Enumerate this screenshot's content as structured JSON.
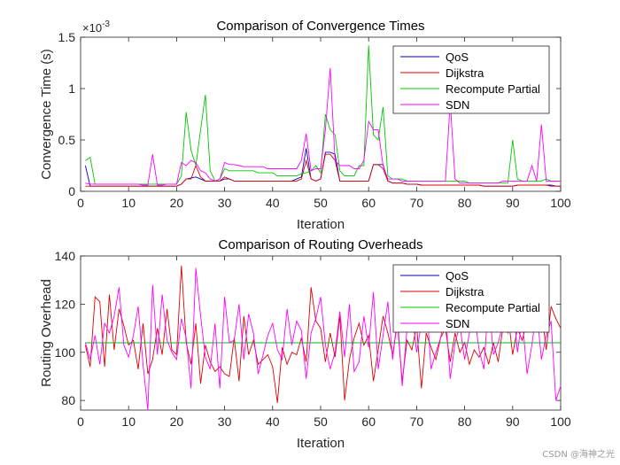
{
  "chart_data": [
    {
      "type": "line",
      "title": "Comparison of Convergence Times",
      "xlabel": "Iteration",
      "ylabel": "Convergence Time (s)",
      "exponent_label": "×10",
      "exponent_power": "-3",
      "xlim": [
        0,
        100
      ],
      "ylim": [
        0,
        1.5
      ],
      "xticks": [
        "0",
        "10",
        "20",
        "30",
        "40",
        "50",
        "60",
        "70",
        "80",
        "90",
        "100"
      ],
      "yticks": [
        "0",
        "0.5",
        "1",
        "1.5"
      ],
      "ytick_values": [
        0,
        0.5,
        1,
        1.5
      ],
      "grid": false,
      "legend_position": "top-right",
      "series": [
        {
          "name": "QoS",
          "color": "#0000c8",
          "values": [
            0.25,
            0.05,
            0.05,
            0.05,
            0.05,
            0.05,
            0.05,
            0.05,
            0.05,
            0.05,
            0.05,
            0.05,
            0.05,
            0.05,
            0.05,
            0.05,
            0.05,
            0.05,
            0.05,
            0.05,
            0.07,
            0.12,
            0.13,
            0.14,
            0.12,
            0.1,
            0.1,
            0.1,
            0.1,
            0.12,
            0.12,
            0.1,
            0.1,
            0.1,
            0.1,
            0.1,
            0.1,
            0.1,
            0.1,
            0.1,
            0.1,
            0.1,
            0.1,
            0.1,
            0.12,
            0.14,
            0.42,
            0.12,
            0.1,
            0.12,
            0.38,
            0.38,
            0.36,
            0.1,
            0.1,
            0.1,
            0.1,
            0.1,
            0.1,
            0.1,
            0.26,
            0.26,
            0.26,
            0.1,
            0.08,
            0.08,
            0.08,
            0.07,
            0.07,
            0.07,
            0.06,
            0.06,
            0.06,
            0.06,
            0.06,
            0.06,
            0.06,
            0.06,
            0.06,
            0.06,
            0.06,
            0.06,
            0.06,
            0.05,
            0.05,
            0.05,
            0.05,
            0.05,
            0.05,
            0.05,
            0.06,
            0.06,
            0.06,
            0.06,
            0.06,
            0.06,
            0.06,
            0.06,
            0.05,
            0.05
          ]
        },
        {
          "name": "Dijkstra",
          "color": "#e00000",
          "values": [
            0.05,
            0.05,
            0.05,
            0.05,
            0.05,
            0.05,
            0.05,
            0.05,
            0.05,
            0.05,
            0.05,
            0.05,
            0.05,
            0.05,
            0.05,
            0.05,
            0.05,
            0.05,
            0.05,
            0.05,
            0.07,
            0.12,
            0.12,
            0.25,
            0.14,
            0.1,
            0.1,
            0.1,
            0.1,
            0.14,
            0.12,
            0.1,
            0.1,
            0.1,
            0.1,
            0.1,
            0.1,
            0.1,
            0.1,
            0.1,
            0.1,
            0.1,
            0.1,
            0.1,
            0.1,
            0.12,
            0.3,
            0.12,
            0.1,
            0.12,
            0.36,
            0.36,
            0.3,
            0.1,
            0.1,
            0.1,
            0.1,
            0.1,
            0.1,
            0.1,
            0.26,
            0.26,
            0.22,
            0.1,
            0.08,
            0.08,
            0.08,
            0.07,
            0.07,
            0.07,
            0.06,
            0.06,
            0.06,
            0.06,
            0.06,
            0.06,
            0.06,
            0.06,
            0.06,
            0.06,
            0.06,
            0.06,
            0.06,
            0.05,
            0.05,
            0.05,
            0.05,
            0.05,
            0.05,
            0.05,
            0.06,
            0.06,
            0.06,
            0.06,
            0.06,
            0.06,
            0.06,
            0.05,
            0.05,
            0.05
          ]
        },
        {
          "name": "Recompute Partial",
          "color": "#00c800",
          "values": [
            0.3,
            0.33,
            0.07,
            0.07,
            0.07,
            0.07,
            0.07,
            0.07,
            0.07,
            0.07,
            0.07,
            0.07,
            0.07,
            0.07,
            0.07,
            0.07,
            0.07,
            0.07,
            0.07,
            0.07,
            0.15,
            0.77,
            0.4,
            0.25,
            0.6,
            0.94,
            0.2,
            0.1,
            0.12,
            0.22,
            0.2,
            0.2,
            0.2,
            0.2,
            0.2,
            0.2,
            0.18,
            0.18,
            0.18,
            0.18,
            0.15,
            0.15,
            0.15,
            0.15,
            0.15,
            0.17,
            0.18,
            0.2,
            0.25,
            0.18,
            0.75,
            0.6,
            0.55,
            0.2,
            0.15,
            0.15,
            0.15,
            0.25,
            0.25,
            1.42,
            0.55,
            0.5,
            0.82,
            0.15,
            0.12,
            0.12,
            0.12,
            0.1,
            0.1,
            0.1,
            0.1,
            0.1,
            0.1,
            0.1,
            0.1,
            0.1,
            0.1,
            0.1,
            0.1,
            0.1,
            0.08,
            0.08,
            0.08,
            0.08,
            0.08,
            0.08,
            0.08,
            0.08,
            0.08,
            0.5,
            0.12,
            0.1,
            0.1,
            0.1,
            0.1,
            0.1,
            0.12,
            0.1,
            0.1,
            0.1
          ]
        },
        {
          "name": "SDN",
          "color": "#ff00ff",
          "values": [
            0.08,
            0.07,
            0.07,
            0.07,
            0.07,
            0.07,
            0.07,
            0.07,
            0.07,
            0.07,
            0.07,
            0.07,
            0.06,
            0.06,
            0.36,
            0.06,
            0.06,
            0.07,
            0.07,
            0.07,
            0.28,
            0.25,
            0.3,
            0.28,
            0.2,
            0.18,
            0.12,
            0.1,
            0.12,
            0.28,
            0.26,
            0.26,
            0.25,
            0.24,
            0.24,
            0.24,
            0.24,
            0.24,
            0.22,
            0.22,
            0.22,
            0.22,
            0.22,
            0.22,
            0.22,
            0.3,
            0.56,
            0.2,
            0.22,
            0.22,
            0.6,
            1.2,
            0.3,
            0.25,
            0.25,
            0.25,
            0.22,
            0.22,
            0.3,
            0.68,
            0.6,
            0.6,
            0.25,
            0.12,
            0.12,
            0.12,
            0.1,
            0.1,
            0.1,
            0.1,
            0.1,
            0.1,
            0.1,
            0.1,
            0.1,
            0.1,
            0.87,
            0.12,
            0.08,
            0.08,
            0.08,
            0.08,
            0.08,
            0.08,
            0.08,
            0.08,
            0.08,
            0.1,
            0.1,
            0.1,
            0.1,
            0.1,
            0.1,
            0.25,
            0.1,
            0.65,
            0.1,
            0.1,
            0.1,
            0.1
          ]
        }
      ]
    },
    {
      "type": "line",
      "title": "Comparison of Routing Overheads",
      "xlabel": "Iteration",
      "ylabel": "Routing Overhead",
      "xlim": [
        0,
        100
      ],
      "ylim": [
        76,
        140
      ],
      "xticks": [
        "0",
        "10",
        "20",
        "30",
        "40",
        "50",
        "60",
        "70",
        "80",
        "90",
        "100"
      ],
      "yticks": [
        "80",
        "100",
        "120",
        "140"
      ],
      "ytick_values": [
        80,
        100,
        120,
        140
      ],
      "grid": false,
      "legend_position": "top-right",
      "series": [
        {
          "name": "QoS",
          "color": "#0000c8",
          "values": [
            104,
            104,
            104,
            104,
            104,
            104,
            104,
            104,
            104,
            104,
            104,
            104,
            104,
            104,
            104,
            104,
            104,
            104,
            104,
            104,
            104,
            104,
            104,
            104,
            104,
            104,
            104,
            104,
            104,
            104,
            104,
            104,
            104,
            104,
            104,
            104,
            104,
            104,
            104,
            104,
            104,
            104,
            104,
            104,
            104,
            104,
            104,
            104,
            104,
            104,
            104,
            104,
            104,
            104,
            104,
            104,
            104,
            104,
            104,
            104,
            104,
            104,
            104,
            104,
            104,
            104,
            104,
            104,
            104,
            104,
            104,
            104,
            104,
            104,
            104,
            104,
            104,
            104,
            104,
            104,
            104,
            104,
            104,
            104,
            104,
            104,
            104,
            104,
            104,
            104,
            104,
            104,
            104,
            104,
            104,
            104,
            104,
            104,
            104,
            104
          ]
        },
        {
          "name": "Dijkstra",
          "color": "#e00000",
          "values": [
            103,
            94,
            123,
            121,
            94,
            124,
            101,
            118,
            111,
            103,
            105,
            93,
            112,
            91,
            97,
            110,
            99,
            118,
            101,
            99,
            136,
            104,
            95,
            112,
            87,
            103,
            96,
            92,
            94,
            91,
            90,
            106,
            88,
            115,
            99,
            105,
            95,
            97,
            99,
            94,
            79,
            102,
            95,
            100,
            99,
            106,
            96,
            127,
            113,
            110,
            96,
            108,
            98,
            115,
            80,
            97,
            106,
            112,
            103,
            107,
            88,
            101,
            115,
            108,
            99,
            112,
            88,
            105,
            101,
            111,
            85,
            108,
            102,
            97,
            106,
            110,
            96,
            108,
            100,
            104,
            95,
            101,
            98,
            102,
            95,
            104,
            96,
            111,
            116,
            99,
            110,
            105,
            113,
            109,
            110,
            118,
            101,
            119,
            114,
            110
          ]
        },
        {
          "name": "Recompute Partial",
          "color": "#00c800",
          "values": [
            104,
            104,
            104,
            104,
            104,
            104,
            104,
            104,
            104,
            104,
            104,
            104,
            104,
            104,
            104,
            104,
            104,
            104,
            104,
            104,
            104,
            104,
            104,
            104,
            104,
            104,
            104,
            104,
            104,
            104,
            104,
            104,
            104,
            104,
            104,
            104,
            104,
            104,
            104,
            104,
            104,
            104,
            104,
            104,
            104,
            104,
            104,
            104,
            104,
            104,
            104,
            104,
            104,
            104,
            104,
            104,
            104,
            104,
            104,
            104,
            104,
            104,
            104,
            104,
            104,
            104,
            104,
            104,
            104,
            104,
            104,
            104,
            104,
            104,
            104,
            104,
            104,
            104,
            104,
            104,
            104,
            104,
            104,
            104,
            104,
            104,
            104,
            104,
            104,
            104,
            104,
            104,
            104,
            104,
            104,
            104,
            104,
            104,
            104,
            104
          ]
        },
        {
          "name": "SDN",
          "color": "#ff00ff",
          "values": [
            104,
            97,
            107,
            95,
            112,
            108,
            115,
            127,
            103,
            98,
            107,
            119,
            95,
            76,
            128,
            99,
            124,
            105,
            100,
            97,
            114,
            106,
            85,
            135,
            115,
            98,
            93,
            112,
            85,
            123,
            104,
            105,
            120,
            97,
            116,
            108,
            91,
            99,
            107,
            112,
            101,
            97,
            118,
            103,
            113,
            109,
            89,
            108,
            114,
            123,
            103,
            93,
            100,
            117,
            98,
            120,
            92,
            96,
            115,
            102,
            125,
            93,
            107,
            121,
            97,
            115,
            86,
            110,
            118,
            100,
            112,
            122,
            93,
            100,
            106,
            117,
            89,
            104,
            111,
            97,
            108,
            116,
            101,
            93,
            123,
            99,
            104,
            112,
            108,
            122,
            100,
            114,
            91,
            103,
            118,
            97,
            107,
            113,
            80,
            86
          ]
        }
      ]
    }
  ],
  "watermark": "CSDN @海神之光"
}
